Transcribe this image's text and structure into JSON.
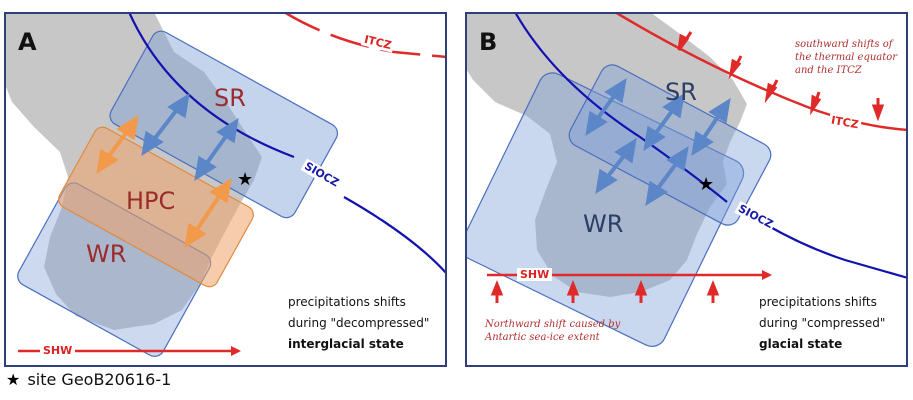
{
  "colors": {
    "frame": "#2e3f7a",
    "land": "#c7c7c7",
    "shw": "#e02a2a",
    "itcz": "#e02a2a",
    "siocz": "#1212b0",
    "arrow_blue": "#5b86c8",
    "arrow_orange": "#f29a4a",
    "box_blue": "#7f9fd8",
    "box_orange": "#f0a36a"
  },
  "panel_a": {
    "letter": "A",
    "regions": {
      "sr": "SR",
      "hpc": "HPC",
      "wr": "WR"
    },
    "itcz_label": "ITCZ",
    "siocz_label": "SIOCZ",
    "shw_label": "SHW",
    "state_line1": "precipitations shifts",
    "state_line2": "during \"decompressed\"",
    "state_line3": "interglacial state"
  },
  "panel_b": {
    "letter": "B",
    "regions": {
      "sr": "SR",
      "wr": "WR"
    },
    "itcz_label": "ITCZ",
    "siocz_label": "SIOCZ",
    "shw_label": "SHW",
    "itcz_note": "southward shifts of the thermal equator and the ITCZ",
    "shw_note": "Northward shift caused by Antartic sea-ice extent",
    "state_line1": "precipitations shifts",
    "state_line2": "during \"compressed\"",
    "state_line3": "glacial state"
  },
  "caption": {
    "star": "★",
    "text": "site GeoB20616-1"
  }
}
